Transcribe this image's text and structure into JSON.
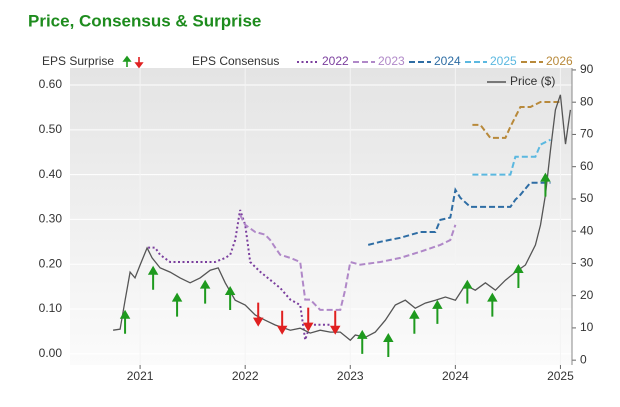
{
  "chart_data": {
    "type": "line",
    "title": "Price, Consensus & Surprise",
    "surprise_label": "EPS Surprise",
    "consensus_label": "EPS Consensus",
    "xlim": [
      2020.333,
      2025.11
    ],
    "xticks": [
      2021,
      2022,
      2023,
      2024,
      2025
    ],
    "ylim": [
      -0.025,
      0.638
    ],
    "yticks": [
      {
        "value": 0,
        "label": "0.00"
      },
      {
        "value": 0.1,
        "label": "0.10"
      },
      {
        "value": 0.2,
        "label": "0.20"
      },
      {
        "value": 0.3,
        "label": "0.30"
      },
      {
        "value": 0.4,
        "label": "0.40"
      },
      {
        "value": 0.5,
        "label": "0.50"
      },
      {
        "value": 0.6,
        "label": "0.60"
      }
    ],
    "y2lim": [
      -1.5,
      90.6
    ],
    "y2ticks": [
      0,
      10,
      20,
      30,
      40,
      50,
      60,
      70,
      80,
      90
    ],
    "grid": true,
    "series": [
      {
        "name": "2022",
        "color": "#7b3f9e",
        "dash": "dotted",
        "x": [
          2021.076,
          2021.143,
          2021.19,
          2021.286,
          2021.714,
          2021.81,
          2021.857,
          2021.905,
          2021.952,
          2022.0,
          2022.048,
          2022.143,
          2022.238,
          2022.333,
          2022.429,
          2022.524,
          2022.571,
          2022.619,
          2022.714,
          2022.81
        ],
        "values": [
          0.237,
          0.237,
          0.221,
          0.205,
          0.205,
          0.214,
          0.221,
          0.254,
          0.321,
          0.288,
          0.205,
          0.183,
          0.165,
          0.147,
          0.121,
          0.109,
          0.031,
          0.065,
          0.065,
          0.065
        ]
      },
      {
        "name": "2023",
        "color": "#b088c8",
        "dash": "dashed",
        "x": [
          2021.952,
          2022.0,
          2022.095,
          2022.19,
          2022.238,
          2022.286,
          2022.333,
          2022.429,
          2022.524,
          2022.571,
          2022.619,
          2022.714,
          2022.81,
          2022.905,
          2022.952,
          2023.0,
          2023.095,
          2023.286,
          2023.476,
          2023.667,
          2023.857,
          2023.952,
          2024.0
        ],
        "values": [
          0.31,
          0.288,
          0.272,
          0.266,
          0.254,
          0.237,
          0.221,
          0.214,
          0.205,
          0.121,
          0.121,
          0.098,
          0.098,
          0.098,
          0.143,
          0.205,
          0.199,
          0.205,
          0.214,
          0.228,
          0.243,
          0.254,
          0.288
        ]
      },
      {
        "name": "2024",
        "color": "#2e6da4",
        "dash": "dashed",
        "x": [
          2023.171,
          2023.286,
          2023.476,
          2023.667,
          2023.81,
          2023.857,
          2023.952,
          2024.0,
          2024.048,
          2024.143,
          2024.524,
          2024.571,
          2024.619,
          2024.714,
          2024.81,
          2024.905
        ],
        "values": [
          0.243,
          0.25,
          0.259,
          0.272,
          0.272,
          0.299,
          0.304,
          0.366,
          0.348,
          0.328,
          0.328,
          0.344,
          0.355,
          0.382,
          0.382,
          0.382
        ]
      },
      {
        "name": "2025",
        "color": "#5bb8e0",
        "dash": "dashed",
        "x": [
          2024.162,
          2024.524,
          2024.571,
          2024.762,
          2024.81,
          2024.905
        ],
        "values": [
          0.4,
          0.4,
          0.44,
          0.44,
          0.467,
          0.478
        ]
      },
      {
        "name": "2026",
        "color": "#b8893a",
        "dash": "dashed",
        "x": [
          2024.162,
          2024.238,
          2024.333,
          2024.476,
          2024.524,
          2024.619,
          2024.714,
          2024.81,
          2024.905,
          2025.0
        ],
        "values": [
          0.511,
          0.511,
          0.482,
          0.482,
          0.507,
          0.551,
          0.551,
          0.562,
          0.562,
          0.562
        ]
      },
      {
        "name": "Price ($)",
        "color": "#555555",
        "dash": "solid",
        "axis": "y2",
        "x": [
          2020.743,
          2020.81,
          2020.857,
          2020.905,
          2020.952,
          2021.0,
          2021.067,
          2021.114,
          2021.19,
          2021.286,
          2021.381,
          2021.476,
          2021.571,
          2021.667,
          2021.743,
          2021.81,
          2021.905,
          2022.0,
          2022.095,
          2022.19,
          2022.286,
          2022.429,
          2022.524,
          2022.619,
          2022.714,
          2022.81,
          2022.905,
          2023.0,
          2023.048,
          2023.143,
          2023.238,
          2023.333,
          2023.429,
          2023.524,
          2023.619,
          2023.714,
          2023.81,
          2023.905,
          2024.0,
          2024.095,
          2024.19,
          2024.286,
          2024.381,
          2024.476,
          2024.571,
          2024.667,
          2024.762,
          2024.81,
          2024.857,
          2024.905,
          2024.952,
          2025.0,
          2025.048,
          2025.095
        ],
        "values": [
          9.3,
          9.6,
          18.6,
          27.3,
          25.5,
          29.5,
          34.8,
          31.7,
          28.6,
          27.3,
          25.5,
          24.0,
          25.5,
          27.9,
          28.6,
          24.0,
          18.6,
          17.1,
          14.0,
          12.4,
          10.9,
          9.3,
          9.9,
          8.4,
          9.3,
          8.7,
          8.7,
          6.2,
          7.8,
          7.1,
          8.7,
          12.4,
          17.1,
          18.6,
          16.1,
          17.7,
          18.6,
          19.6,
          18.6,
          23.3,
          21.7,
          24.0,
          21.7,
          24.8,
          27.3,
          29.5,
          35.7,
          41.9,
          51.2,
          65.2,
          77.6,
          82.3,
          67.0,
          77.6
        ]
      }
    ],
    "surprises": [
      {
        "direction": "up",
        "color": "#1e9a1e",
        "x": [
          2020.857,
          2021.124,
          2021.352,
          2021.619,
          2021.857,
          2023.114,
          2023.362,
          2023.61,
          2023.829,
          2024.114,
          2024.352,
          2024.6,
          2024.857
        ],
        "values": [
          0.094,
          0.192,
          0.132,
          0.161,
          0.147,
          0.049,
          0.042,
          0.094,
          0.116,
          0.161,
          0.132,
          0.196,
          0.4
        ]
      },
      {
        "direction": "down",
        "color": "#e02020",
        "x": [
          2022.124,
          2022.352,
          2022.6,
          2022.857
        ],
        "values": [
          0.065,
          0.047,
          0.054,
          0.047
        ]
      }
    ]
  }
}
